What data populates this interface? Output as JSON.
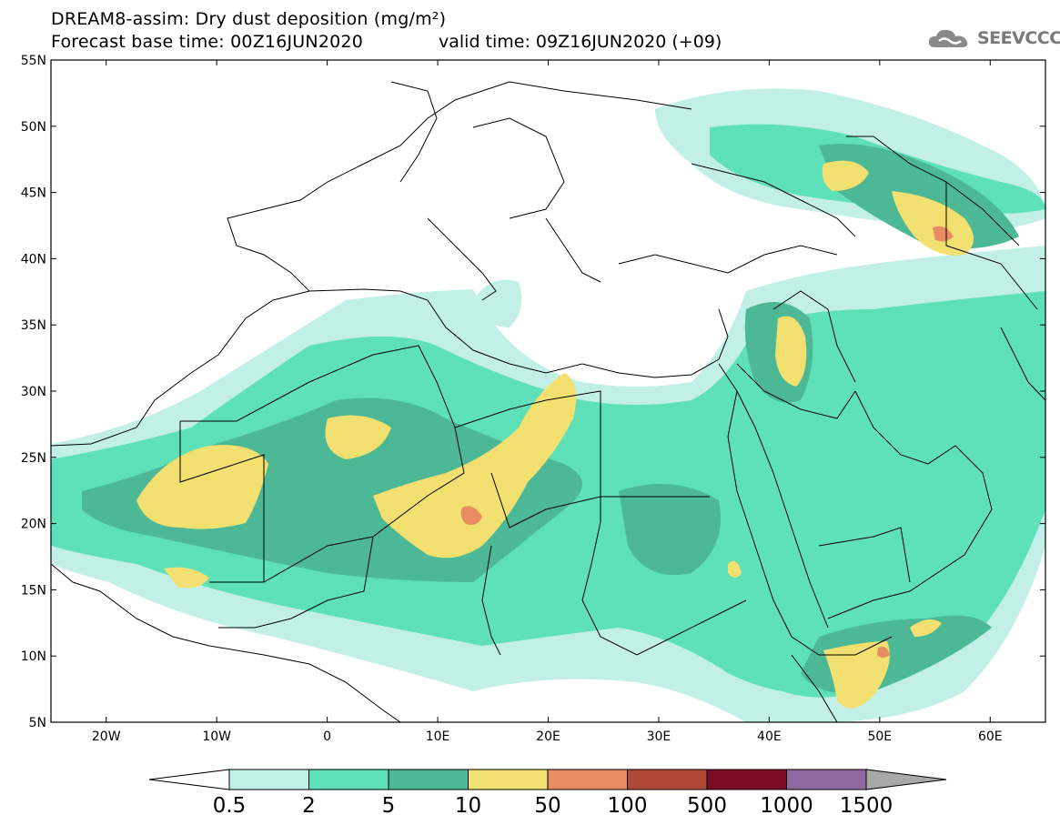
{
  "title": {
    "line1": "DREAM8-assim: Dry dust deposition (mg/m²)",
    "line2": "Forecast base time: 00Z16JUN2020",
    "valid": "valid time: 09Z16JUN2020 (+09)"
  },
  "logo": {
    "text": "SEEVCCC",
    "icon": "cloud-icon"
  },
  "map": {
    "lon_range": [
      -25,
      65
    ],
    "lat_range": [
      5,
      55
    ],
    "lat_ticks": [
      "55N",
      "50N",
      "45N",
      "40N",
      "35N",
      "30N",
      "25N",
      "20N",
      "15N",
      "10N",
      "5N"
    ],
    "lon_ticks": [
      "20W",
      "10W",
      "0",
      "10E",
      "20E",
      "30E",
      "40E",
      "50E",
      "60E"
    ]
  },
  "colorbar": {
    "levels": [
      "0.5",
      "2",
      "5",
      "10",
      "50",
      "100",
      "500",
      "1000",
      "1500"
    ],
    "colors": [
      "#c2f0e8",
      "#5ee0b8",
      "#4db896",
      "#f2e070",
      "#e88c64",
      "#b04838",
      "#7a0c24",
      "#8e6aa0",
      "#a8a8a8"
    ],
    "under_color": "#ffffff",
    "over_color": "#a8a8a8"
  }
}
